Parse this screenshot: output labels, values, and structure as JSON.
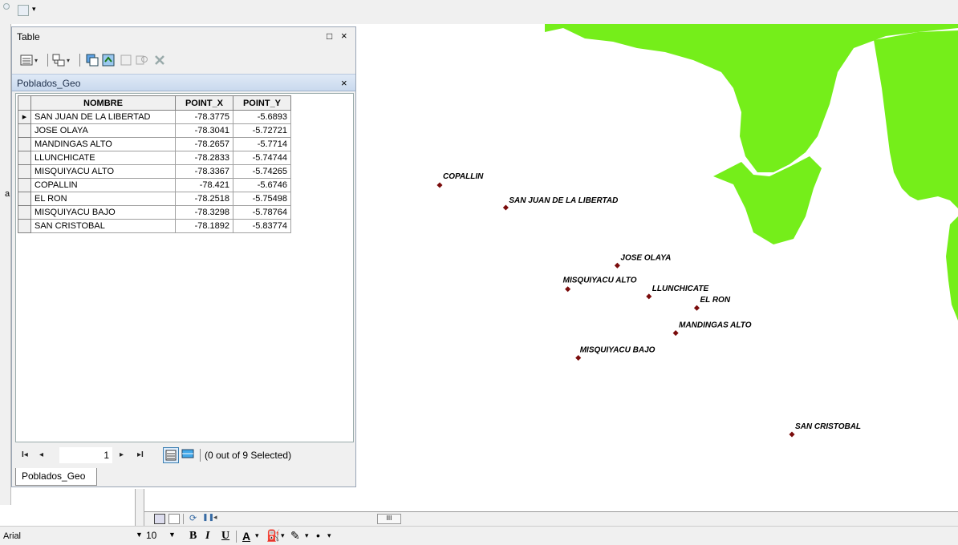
{
  "table_window": {
    "title": "Table",
    "restore_glyph": "□",
    "close_glyph": "×",
    "layer_tab": "Poblados_Geo",
    "layer_tab_close": "×",
    "columns": [
      "NOMBRE",
      "POINT_X",
      "POINT_Y"
    ],
    "rows": [
      {
        "nombre": "SAN JUAN DE LA LIBERTAD",
        "x": "-78.3775",
        "y": "-5.6893"
      },
      {
        "nombre": "JOSE OLAYA",
        "x": "-78.3041",
        "y": "-5.72721"
      },
      {
        "nombre": "MANDINGAS ALTO",
        "x": "-78.2657",
        "y": "-5.7714"
      },
      {
        "nombre": "LLUNCHICATE",
        "x": "-78.2833",
        "y": "-5.74744"
      },
      {
        "nombre": "MISQUIYACU ALTO",
        "x": "-78.3367",
        "y": "-5.74265"
      },
      {
        "nombre": "COPALLIN",
        "x": "-78.421",
        "y": "-5.6746"
      },
      {
        "nombre": "EL RON",
        "x": "-78.2518",
        "y": "-5.75498"
      },
      {
        "nombre": "MISQUIYACU BAJO",
        "x": "-78.3298",
        "y": "-5.78764"
      },
      {
        "nombre": "SAN CRISTOBAL",
        "x": "-78.1892",
        "y": "-5.83774"
      }
    ],
    "record_number": "1",
    "selection_status": "(0 out of 9 Selected)",
    "bottom_tab": "Poblados_Geo",
    "nav": {
      "first": "I◂",
      "prev": "◂",
      "next": "▸",
      "last": "▸I"
    }
  },
  "map": {
    "land_color": "#75ee1a",
    "point_color": "#7a0c0c",
    "labels": [
      "COPALLIN",
      "SAN JUAN DE LA LIBERTAD",
      "JOSE OLAYA",
      "MISQUIYACU ALTO",
      "LLUNCHICATE",
      "EL RON",
      "MANDINGAS ALTO",
      "MISQUIYACU BAJO",
      "SAN CRISTOBAL"
    ]
  },
  "map_bottom_bar": {
    "scroll_thumb": "III"
  },
  "drawing_toolbar": {
    "font_name": "Arial",
    "font_size": "10",
    "bold": "B",
    "italic": "I",
    "underline": "U",
    "font_color": "A"
  },
  "left_sliver_char": "a",
  "icons": [
    "table-options-icon",
    "related-tables-icon",
    "select-by-attributes-icon",
    "switch-selection-icon",
    "clear-selection-icon",
    "zoom-to-selected-icon",
    "delete-selected-icon"
  ]
}
